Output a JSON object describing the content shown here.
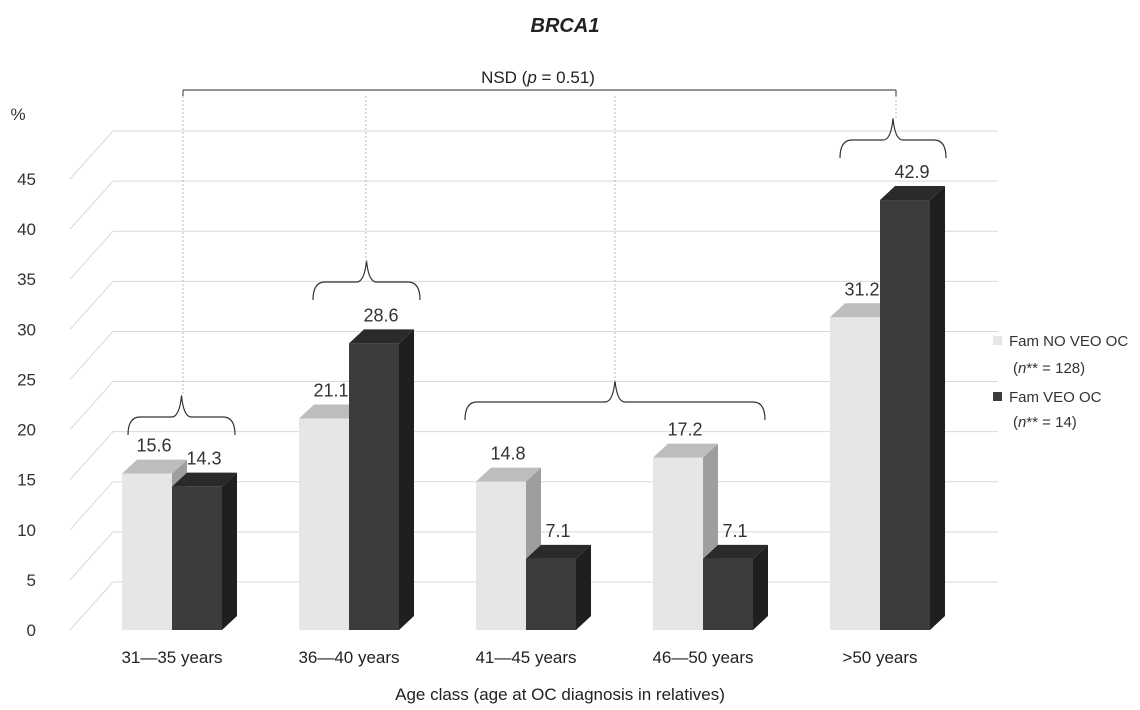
{
  "chart_data": {
    "type": "bar",
    "title": "BRCA1",
    "ylabel": "%",
    "xlabel": "Age class (age at OC diagnosis in relatives)",
    "ylim": [
      0,
      45
    ],
    "yticks": [
      "0",
      "5",
      "10",
      "15",
      "20",
      "25",
      "30",
      "35",
      "40",
      "45"
    ],
    "categories": [
      "31—35 years",
      "36—40 years",
      "41—45 years",
      "46—50 years",
      ">50 years"
    ],
    "series": [
      {
        "name": "Fam NO VEO OC",
        "values": [
          15.6,
          21.1,
          14.8,
          17.2,
          31.2
        ],
        "color": "#e6e6e6"
      },
      {
        "name": "Fam VEO OC",
        "values": [
          14.3,
          28.6,
          7.1,
          7.1,
          42.9
        ],
        "color": "#3c3c3c"
      }
    ],
    "data_labels": [
      [
        "15.6",
        "21.1",
        "14.8",
        "17.2",
        "31.2"
      ],
      [
        "14.3",
        "28.6",
        "7.1",
        "7.1",
        "42.9"
      ]
    ],
    "legend": {
      "position": "right",
      "entries": [
        {
          "label": "Fam NO VEO OC",
          "n_label": "n",
          "n_rest": "** = 128)"
        },
        {
          "label": "Fam VEO OC",
          "n_label": "n",
          "n_rest": "** = 14)"
        }
      ]
    },
    "annotation": {
      "prefix": "NSD (",
      "p": "p",
      "suffix": " = 0.51)"
    },
    "grid": true
  }
}
